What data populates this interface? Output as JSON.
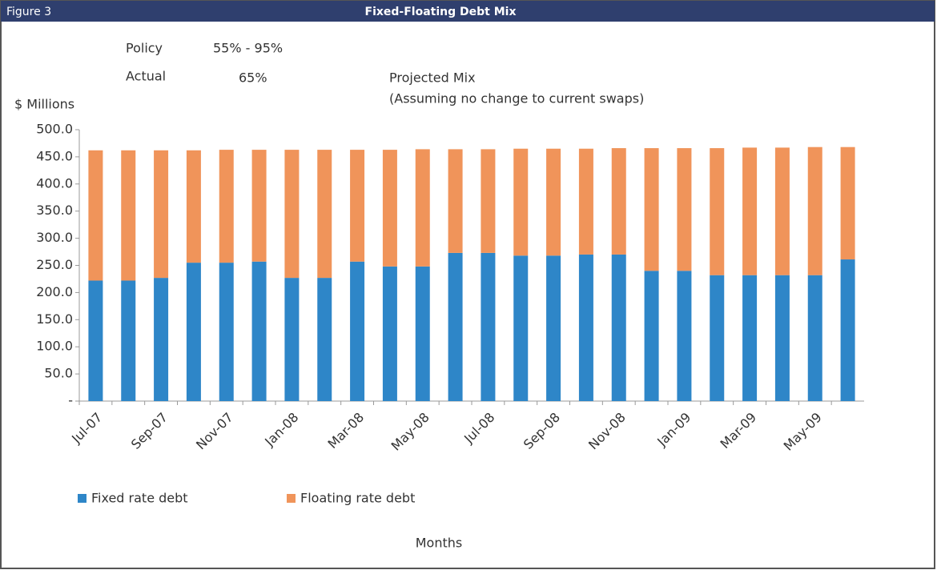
{
  "chart_data": {
    "type": "stacked_bar",
    "figure_label": "Figure 3",
    "title": "Fixed-Floating Debt Mix",
    "annotations": {
      "policy_label": "Policy",
      "policy_value": "55% - 95%",
      "actual_label": "Actual",
      "actual_value": "65%",
      "projected": "Projected Mix",
      "projected_note": "(Assuming no change to current swaps)"
    },
    "y_label": "$ Millions",
    "x_label": "Months",
    "categories": [
      "Jul-07",
      null,
      "Sep-07",
      null,
      "Nov-07",
      null,
      "Jan-08",
      null,
      "Mar-08",
      null,
      "May-08",
      null,
      "Jul-08",
      null,
      "Sep-08",
      null,
      "Nov-08",
      null,
      "Jan-09",
      null,
      "Mar-09",
      null,
      "May-09",
      null
    ],
    "series": [
      {
        "name": "Fixed rate debt",
        "color": "#2e86c8",
        "values": [
          222,
          222,
          227,
          255,
          255,
          257,
          227,
          227,
          257,
          248,
          248,
          273,
          273,
          268,
          268,
          270,
          270,
          240,
          240,
          232,
          232,
          232,
          232,
          261
        ]
      },
      {
        "name": "Floating rate debt",
        "color": "#f0945a",
        "values": [
          240,
          240,
          235,
          207,
          208,
          206,
          236,
          236,
          206,
          215,
          216,
          191,
          191,
          197,
          197,
          195,
          196,
          226,
          226,
          234,
          235,
          235,
          236,
          207
        ]
      }
    ],
    "ylim": [
      0,
      500
    ],
    "yticks": [
      {
        "value": 0,
        "label": "-"
      },
      {
        "value": 50,
        "label": "50.0"
      },
      {
        "value": 100,
        "label": "100.0"
      },
      {
        "value": 150,
        "label": "150.0"
      },
      {
        "value": 200,
        "label": "200.0"
      },
      {
        "value": 250,
        "label": "250.0"
      },
      {
        "value": 300,
        "label": "300.0"
      },
      {
        "value": 350,
        "label": "350.0"
      },
      {
        "value": 400,
        "label": "400.0"
      },
      {
        "value": 450,
        "label": "450.0"
      },
      {
        "value": 500,
        "label": "500.0"
      }
    ],
    "grid": false,
    "legend": "bottom"
  }
}
